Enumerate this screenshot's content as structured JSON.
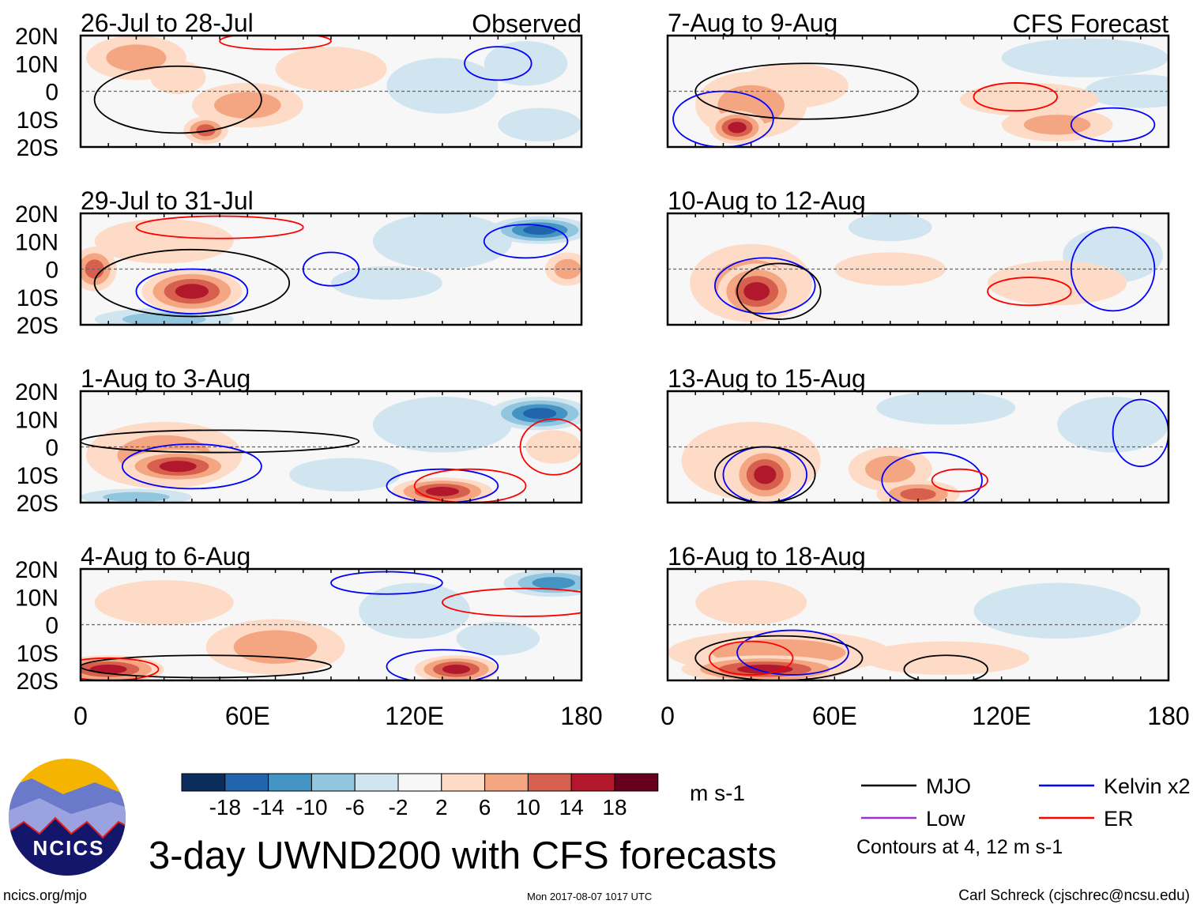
{
  "chart_data": {
    "type": "heatmap",
    "title": "3-day UWND200 with CFS forecasts",
    "xlim": [
      0,
      180
    ],
    "ylim": [
      -20,
      20
    ],
    "xticks": [
      "0",
      "60E",
      "120E",
      "180"
    ],
    "yticks": [
      "20N",
      "10N",
      "0",
      "10S",
      "20S"
    ],
    "column_labels": [
      "Observed",
      "CFS Forecast"
    ],
    "colorbar": {
      "levels": [
        "-18",
        "-14",
        "-10",
        "-6",
        "-2",
        "2",
        "6",
        "10",
        "14",
        "18"
      ],
      "colors": [
        "#0a2d5e",
        "#2166ac",
        "#4393c3",
        "#92c5de",
        "#d1e5f0",
        "#f7f7f7",
        "#fddbc7",
        "#f4a582",
        "#d6604d",
        "#b2182b",
        "#67001f"
      ],
      "units": "m s-1"
    },
    "legend": [
      {
        "label": "MJO",
        "color": "#000000"
      },
      {
        "label": "Kelvin x2",
        "color": "#0000ff"
      },
      {
        "label": "Low",
        "color": "#9933cc"
      },
      {
        "label": "ER",
        "color": "#ff0000"
      }
    ],
    "contour_note": "Contours at 4, 12 m s-1",
    "panels": [
      {
        "title": "26-Jul to 28-Jul",
        "col": 0,
        "row": 0,
        "anom": [
          [
            20,
            12,
            18,
            8,
            7
          ],
          [
            60,
            -5,
            20,
            8,
            8
          ],
          [
            45,
            -14,
            8,
            5,
            12
          ],
          [
            130,
            2,
            20,
            10,
            -5
          ],
          [
            160,
            10,
            15,
            8,
            -4
          ],
          [
            165,
            -12,
            15,
            6,
            -5
          ],
          [
            90,
            8,
            20,
            8,
            4
          ],
          [
            35,
            5,
            10,
            6,
            6
          ]
        ],
        "cont": [
          [
            35,
            -3,
            30,
            12,
            "mjo"
          ],
          [
            150,
            10,
            12,
            6,
            "kelvin"
          ],
          [
            70,
            18,
            20,
            3,
            "er"
          ]
        ]
      },
      {
        "title": "7-Aug to 9-Aug",
        "col": 1,
        "row": 0,
        "anom": [
          [
            25,
            -13,
            10,
            6,
            15
          ],
          [
            30,
            -5,
            20,
            12,
            7
          ],
          [
            45,
            2,
            20,
            8,
            6
          ],
          [
            130,
            -3,
            25,
            6,
            6
          ],
          [
            140,
            -12,
            20,
            6,
            8
          ],
          [
            150,
            12,
            30,
            7,
            -4
          ],
          [
            170,
            0,
            20,
            6,
            -3
          ]
        ],
        "cont": [
          [
            50,
            0,
            40,
            10,
            "mjo"
          ],
          [
            20,
            -10,
            18,
            10,
            "kelvin"
          ],
          [
            160,
            -12,
            15,
            6,
            "kelvin"
          ],
          [
            125,
            -2,
            15,
            5,
            "er"
          ]
        ]
      },
      {
        "title": "29-Jul to 31-Jul",
        "col": 0,
        "row": 1,
        "anom": [
          [
            40,
            -8,
            18,
            8,
            16
          ],
          [
            5,
            0,
            8,
            8,
            12
          ],
          [
            30,
            -18,
            25,
            4,
            -10
          ],
          [
            165,
            14,
            18,
            5,
            -18
          ],
          [
            130,
            10,
            25,
            10,
            -6
          ],
          [
            110,
            -5,
            20,
            6,
            -3
          ],
          [
            175,
            0,
            8,
            6,
            8
          ],
          [
            30,
            10,
            25,
            8,
            5
          ]
        ],
        "cont": [
          [
            40,
            -5,
            35,
            12,
            "mjo"
          ],
          [
            40,
            -8,
            20,
            8,
            "kelvin"
          ],
          [
            90,
            0,
            10,
            6,
            "kelvin"
          ],
          [
            160,
            10,
            15,
            6,
            "kelvin"
          ],
          [
            50,
            15,
            30,
            4,
            "er"
          ]
        ]
      },
      {
        "title": "10-Aug to 12-Aug",
        "col": 1,
        "row": 1,
        "anom": [
          [
            32,
            -8,
            14,
            10,
            16
          ],
          [
            30,
            -5,
            22,
            14,
            7
          ],
          [
            80,
            0,
            20,
            6,
            5
          ],
          [
            140,
            -5,
            25,
            8,
            6
          ],
          [
            80,
            15,
            15,
            5,
            -6
          ],
          [
            160,
            5,
            18,
            10,
            -3
          ]
        ],
        "cont": [
          [
            35,
            -6,
            18,
            10,
            "kelvin"
          ],
          [
            40,
            -8,
            15,
            10,
            "mjo"
          ],
          [
            130,
            -8,
            15,
            5,
            "er"
          ],
          [
            160,
            0,
            15,
            15,
            "kelvin"
          ]
        ]
      },
      {
        "title": "1-Aug to 3-Aug",
        "col": 0,
        "row": 2,
        "anom": [
          [
            35,
            -7,
            20,
            6,
            18
          ],
          [
            30,
            -3,
            28,
            12,
            8
          ],
          [
            130,
            -16,
            18,
            5,
            16
          ],
          [
            165,
            12,
            18,
            6,
            -16
          ],
          [
            130,
            8,
            25,
            10,
            -6
          ],
          [
            95,
            -10,
            20,
            6,
            -6
          ],
          [
            20,
            -18,
            20,
            3,
            -10
          ],
          [
            170,
            0,
            10,
            6,
            6
          ]
        ],
        "cont": [
          [
            50,
            2,
            50,
            4,
            "mjo"
          ],
          [
            40,
            -7,
            25,
            8,
            "kelvin"
          ],
          [
            130,
            -14,
            20,
            6,
            "kelvin"
          ],
          [
            170,
            0,
            12,
            10,
            "er"
          ],
          [
            140,
            -14,
            20,
            6,
            "er"
          ]
        ]
      },
      {
        "title": "13-Aug to 15-Aug",
        "col": 1,
        "row": 2,
        "anom": [
          [
            35,
            -10,
            12,
            10,
            16
          ],
          [
            80,
            -8,
            15,
            8,
            8
          ],
          [
            90,
            -17,
            15,
            5,
            12
          ],
          [
            30,
            -5,
            25,
            14,
            6
          ],
          [
            100,
            14,
            25,
            6,
            -5
          ],
          [
            160,
            8,
            20,
            10,
            -3
          ]
        ],
        "cont": [
          [
            35,
            -10,
            15,
            10,
            "kelvin"
          ],
          [
            35,
            -10,
            18,
            10,
            "mjo"
          ],
          [
            95,
            -12,
            18,
            10,
            "kelvin"
          ],
          [
            105,
            -12,
            10,
            4,
            "er"
          ],
          [
            170,
            5,
            10,
            12,
            "kelvin"
          ]
        ]
      },
      {
        "title": "4-Aug to 6-Aug",
        "col": 0,
        "row": 3,
        "anom": [
          [
            10,
            -16,
            20,
            5,
            16
          ],
          [
            135,
            -16,
            15,
            5,
            16
          ],
          [
            70,
            -8,
            25,
            10,
            7
          ],
          [
            170,
            15,
            18,
            5,
            -14
          ],
          [
            120,
            5,
            20,
            10,
            -6
          ],
          [
            30,
            8,
            25,
            8,
            6
          ],
          [
            150,
            -5,
            15,
            6,
            -3
          ]
        ],
        "cont": [
          [
            45,
            -15,
            45,
            4,
            "mjo"
          ],
          [
            130,
            -15,
            20,
            6,
            "kelvin"
          ],
          [
            10,
            -16,
            18,
            4,
            "er"
          ],
          [
            160,
            8,
            30,
            5,
            "er"
          ],
          [
            110,
            15,
            20,
            4,
            "kelvin"
          ]
        ]
      },
      {
        "title": "16-Aug to 18-Aug",
        "col": 1,
        "row": 3,
        "anom": [
          [
            35,
            -16,
            30,
            5,
            16
          ],
          [
            40,
            -10,
            40,
            8,
            7
          ],
          [
            100,
            -12,
            30,
            6,
            5
          ],
          [
            140,
            5,
            30,
            10,
            -3
          ],
          [
            30,
            8,
            20,
            8,
            5
          ]
        ],
        "cont": [
          [
            40,
            -12,
            30,
            8,
            "mjo"
          ],
          [
            45,
            -10,
            20,
            8,
            "kelvin"
          ],
          [
            100,
            -16,
            15,
            5,
            "mjo"
          ],
          [
            30,
            -12,
            15,
            6,
            "er"
          ]
        ]
      }
    ]
  },
  "footer": {
    "site": "ncics.org/mjo",
    "timestamp": "Mon 2017-08-07 1017 UTC",
    "author": "Carl Schreck (cjschrec@ncsu.edu)",
    "logo_text": "NCICS"
  }
}
